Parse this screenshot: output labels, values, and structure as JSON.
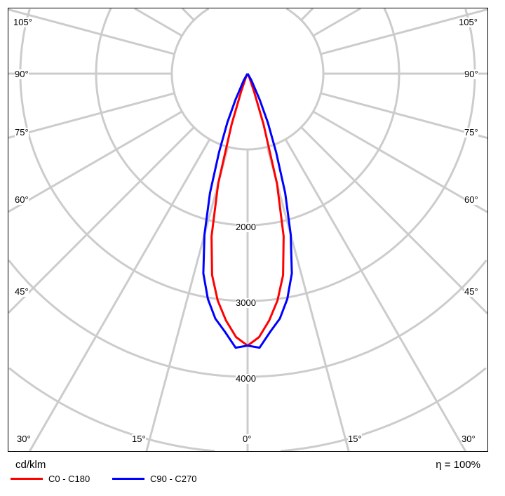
{
  "chart_data": {
    "type": "polar",
    "unit_label": "cd/klm",
    "efficiency_label": "η = 100%",
    "radial_ticks": [
      1000,
      2000,
      3000,
      4000,
      5000,
      6000,
      7000,
      8000
    ],
    "radial_tick_labels": [
      "2000",
      "3000",
      "4000"
    ],
    "angle_step": 15,
    "angle_labels_left": [
      "105°",
      "90°",
      "75°",
      "60°",
      "45°",
      "30°"
    ],
    "angle_labels_bottom": [
      "15°",
      "0°",
      "15°"
    ],
    "angle_labels_right": [
      "105°",
      "90°",
      "75°",
      "60°",
      "45°",
      "30°"
    ],
    "angle_label_bottom_right": "30°",
    "series": [
      {
        "name": "C0 - C180",
        "color": "#ff0000",
        "angles": [
          0,
          2.5,
          5,
          7.5,
          10,
          12.5,
          15,
          17.5,
          20,
          25,
          30,
          35,
          90
        ],
        "values": [
          3590,
          3480,
          3270,
          3020,
          2700,
          2200,
          1500,
          700,
          250,
          50,
          10,
          0,
          0
        ]
      },
      {
        "name": "C90 - C270",
        "color": "#0000ff",
        "angles": [
          0,
          2.5,
          5,
          7.5,
          10,
          12.5,
          15,
          17.5,
          20,
          22.5,
          25,
          30,
          35,
          40,
          90
        ],
        "values": [
          3590,
          3620,
          3420,
          3260,
          3020,
          2700,
          2200,
          1650,
          1100,
          700,
          380,
          100,
          20,
          0,
          0
        ]
      }
    ],
    "grid_color": "#cccccc"
  }
}
